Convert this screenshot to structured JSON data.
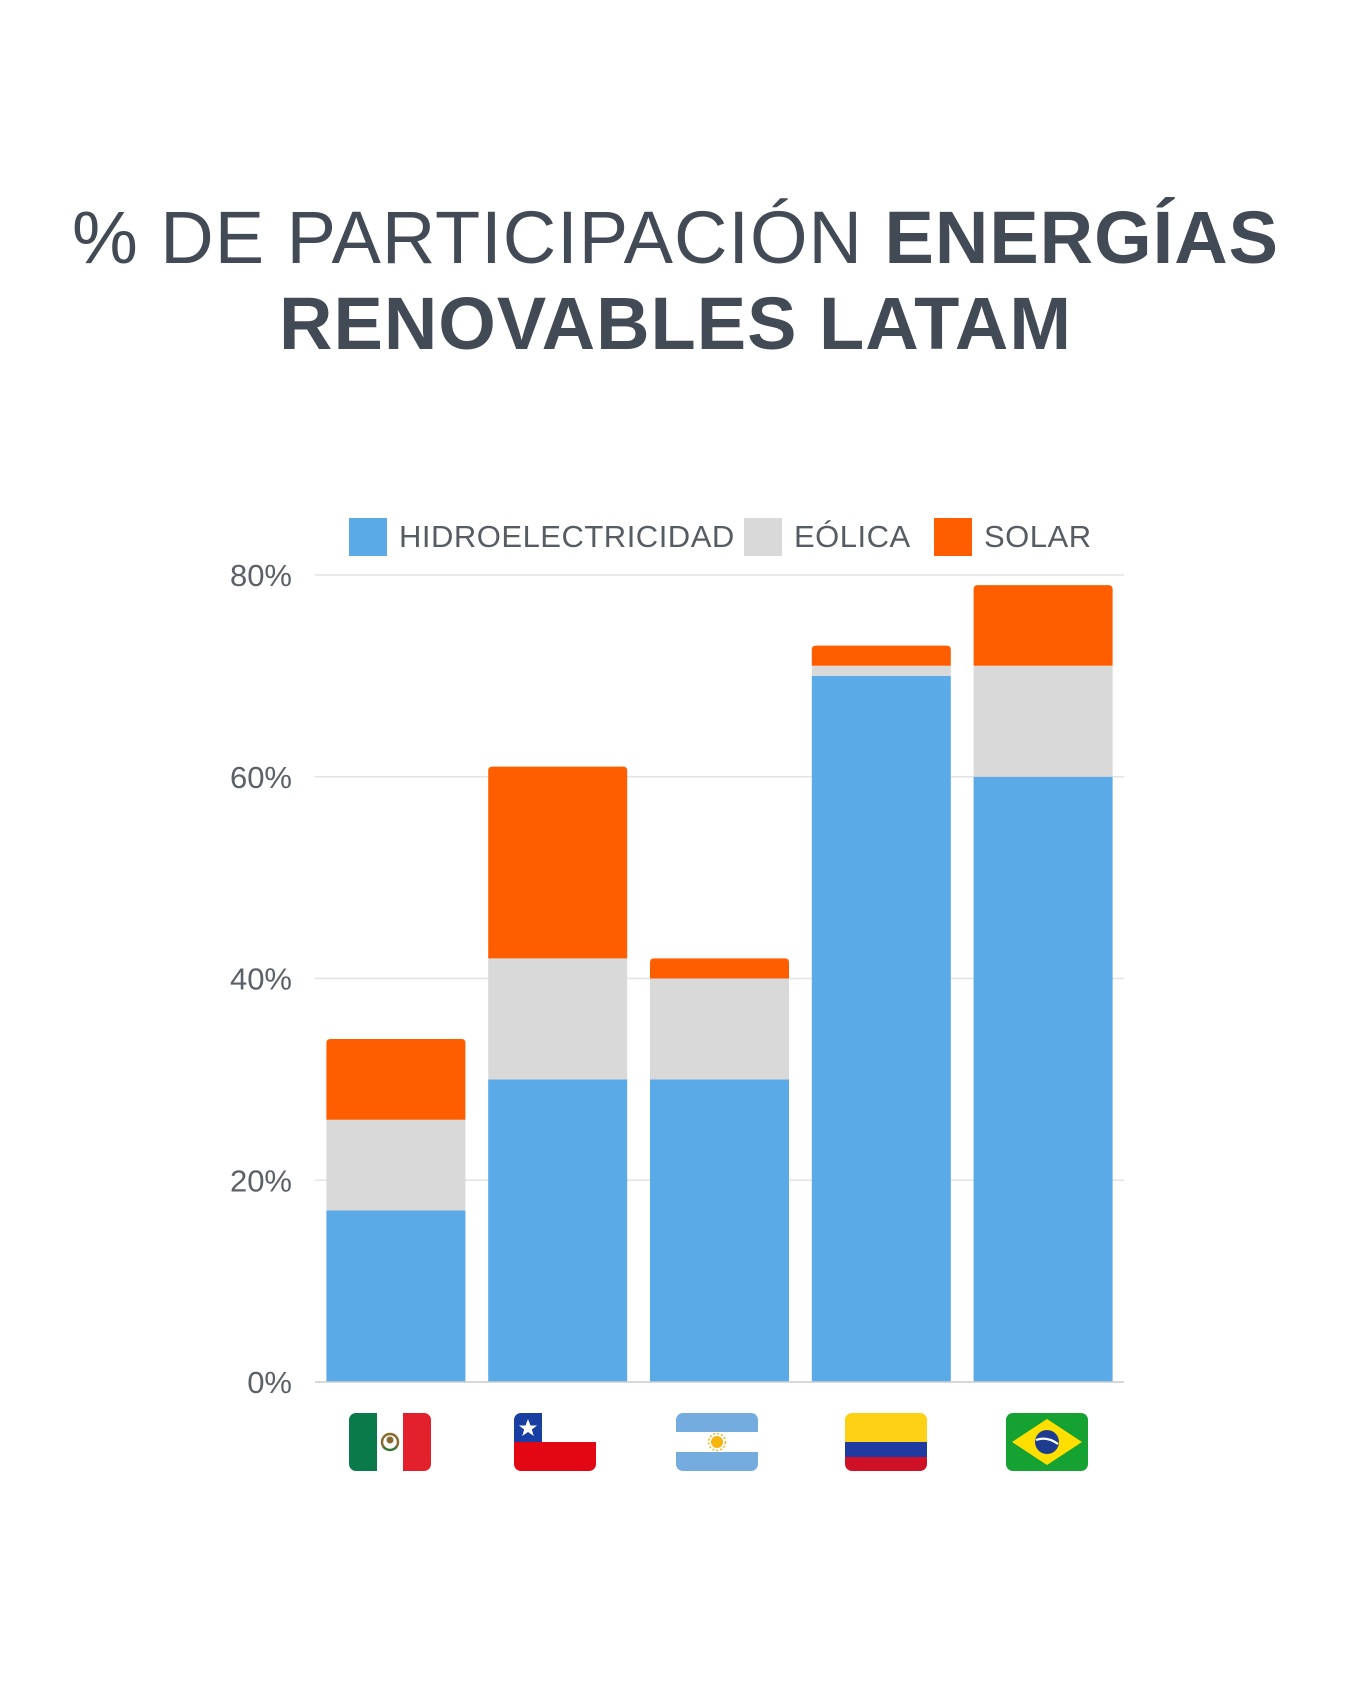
{
  "title": {
    "line1_light": "% DE PARTICIPACIÓN",
    "line1_bold": "ENERGÍAS",
    "line2": "RENOVABLES LATAM"
  },
  "colors": {
    "hidro": "#5aaae8",
    "eolica": "#d9d9d9",
    "solar": "#ff5e00",
    "title": "#414a55",
    "grid": "#e3e3e3",
    "axis_text": "#5b6168"
  },
  "chart_data": {
    "type": "bar",
    "stacked": true,
    "categories": [
      "México",
      "Chile",
      "Argentina",
      "Colombia",
      "Brasil"
    ],
    "category_icons": [
      "mexico-flag-icon",
      "chile-flag-icon",
      "argentina-flag-icon",
      "colombia-flag-icon",
      "brazil-flag-icon"
    ],
    "series": [
      {
        "name": "HIDROELECTRICIDAD",
        "values": [
          17,
          30,
          30,
          70,
          60
        ],
        "color": "#5aaae8"
      },
      {
        "name": "EÓLICA",
        "values": [
          9,
          12,
          10,
          1,
          11
        ],
        "color": "#d9d9d9"
      },
      {
        "name": "SOLAR",
        "values": [
          8,
          19,
          2,
          2,
          8
        ],
        "color": "#ff5e00"
      }
    ],
    "ylim": [
      0,
      80
    ],
    "yticks": [
      "0%",
      "20%",
      "40%",
      "60%",
      "80%"
    ],
    "grid": true,
    "legend": "top"
  }
}
